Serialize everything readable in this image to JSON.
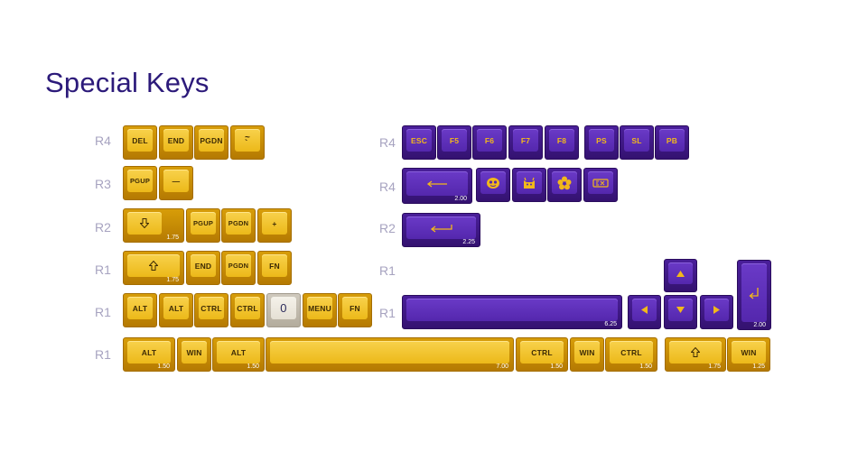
{
  "title": "Special Keys",
  "row_labels": [
    "R4",
    "R3",
    "R2",
    "R1",
    "R1",
    "R1",
    "R4",
    "R4",
    "R2",
    "R1",
    "R1"
  ],
  "keys": {
    "del": "DEL",
    "end": "END",
    "pgdn": "PGDN",
    "tilde": "~\n`",
    "pgup": "PGUP",
    "minus": "—",
    "pgup2": "PGUP",
    "pgdn2": "PGDN",
    "plus": "+",
    "end2": "END",
    "pgdn3": "PGDN",
    "fn": "FN",
    "alt": "ALT",
    "alt2": "ALT",
    "ctrl": "CTRL",
    "ctrl2": "CTRL",
    "zero": "0",
    "menu": "MENU",
    "fn2": "FN",
    "alt3": "ALT",
    "win": "WIN",
    "alt4": "ALT",
    "ctrl3": "CTRL",
    "win2": "WIN",
    "ctrl4": "CTRL",
    "win3": "WIN",
    "esc": "ESC",
    "f5": "F5",
    "f6": "F6",
    "f7": "F7",
    "f8": "F8",
    "ps": "PS",
    "sl": "SL",
    "pb": "PB"
  },
  "sizes": {
    "shift_down": "1.75",
    "shift_up": "1.75",
    "alt_150": "1.50",
    "alt2_150": "1.50",
    "space": "7.00",
    "ctrl_150": "1.50",
    "ctrl2_150": "1.50",
    "shift_175": "1.75",
    "win_125": "1.25",
    "backspace": "2.00",
    "enter": "2.25",
    "space_purple": "6.25",
    "numenter": "2.00"
  },
  "colors": {
    "accent_yellow": "#f0c12a",
    "accent_purple": "#5a2bb4",
    "title": "#2c1a7a",
    "row_label": "#a7a3c0"
  },
  "icons": [
    "arrow-down-outline-icon",
    "arrow-up-outline-icon",
    "arrow-left-icon",
    "enter-icon",
    "face-icon",
    "cat-icon",
    "flower-icon",
    "logo-icon",
    "triangle-up-icon",
    "triangle-down-icon",
    "triangle-left-icon",
    "triangle-right-icon",
    "numpad-enter-icon"
  ]
}
